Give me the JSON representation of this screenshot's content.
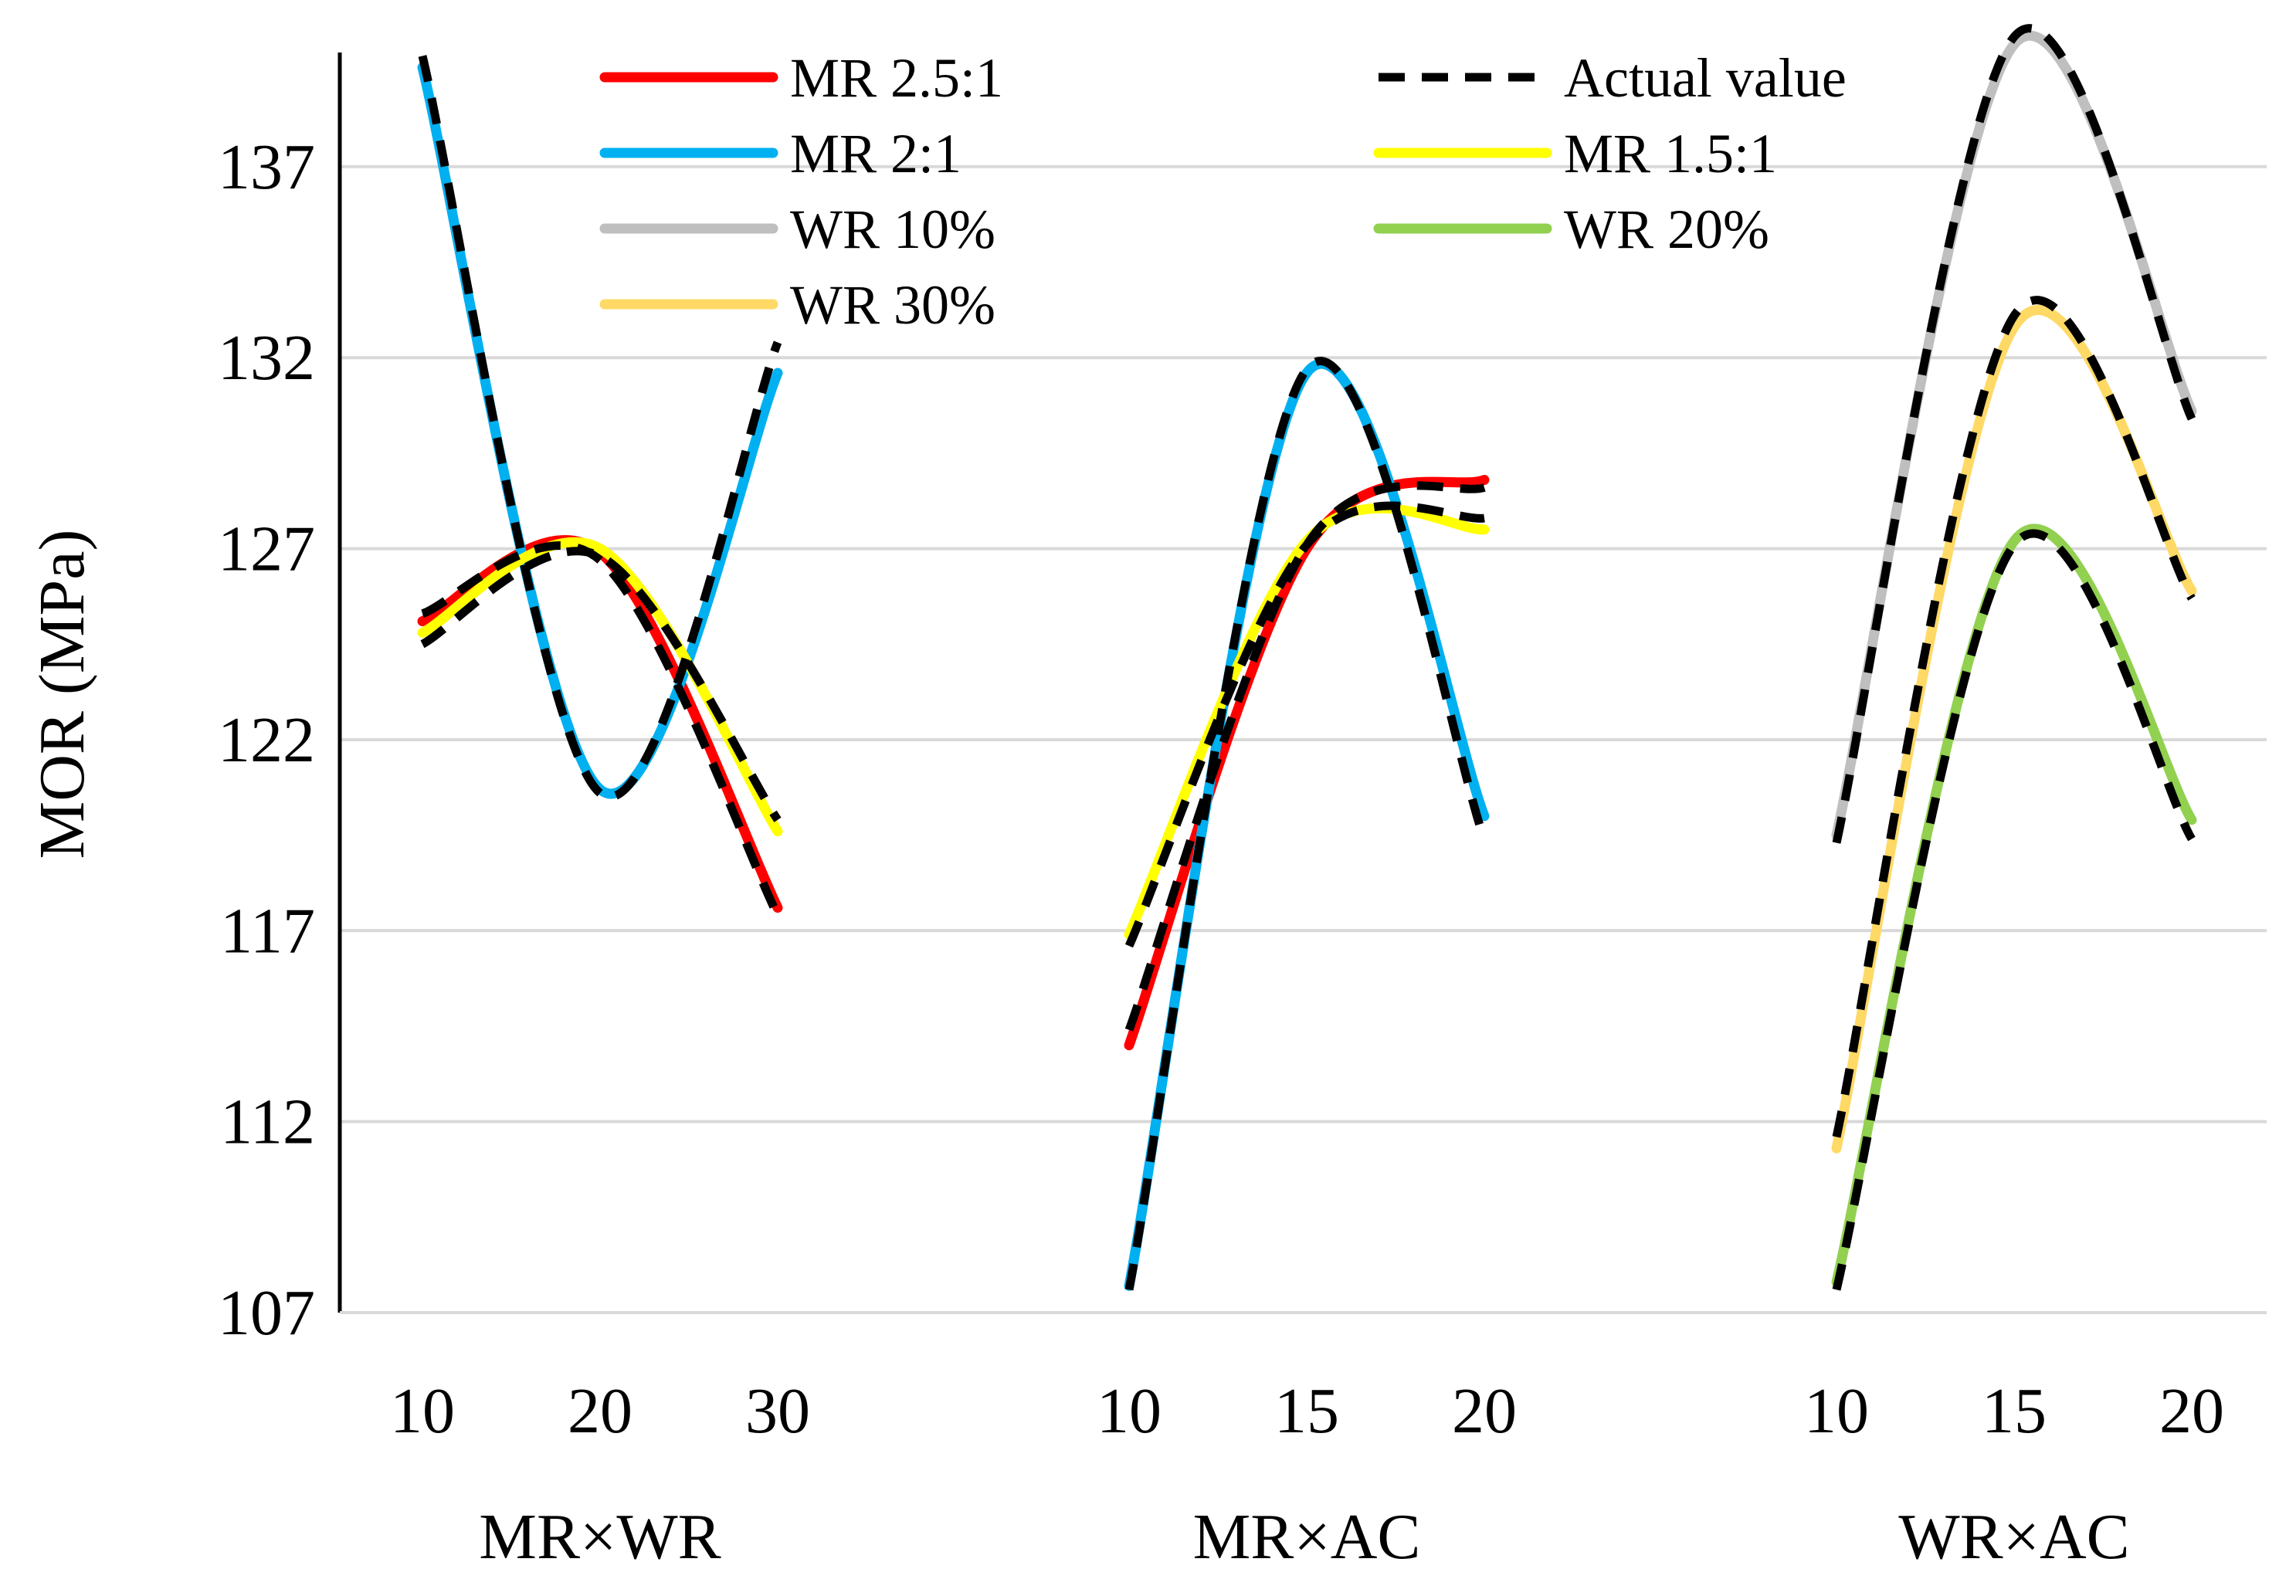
{
  "chart_data": {
    "type": "line",
    "ylabel": "MOR (MPa)",
    "ylim": [
      107,
      141
    ],
    "yticks": [
      107,
      112,
      117,
      122,
      127,
      132,
      137
    ],
    "gridlines": true,
    "legend_position": "top",
    "legend": [
      {
        "key": "mr25",
        "label": "MR 2.5:1",
        "color": "#ff0000",
        "style": "solid"
      },
      {
        "key": "actual",
        "label": "Actual value",
        "color": "#000000",
        "style": "dashed"
      },
      {
        "key": "mr2",
        "label": "MR 2:1",
        "color": "#00b0f0",
        "style": "solid"
      },
      {
        "key": "mr15",
        "label": "MR 1.5:1",
        "color": "#ffff00",
        "style": "solid"
      },
      {
        "key": "wr10",
        "label": "WR 10%",
        "color": "#bfbfbf",
        "style": "solid"
      },
      {
        "key": "wr20",
        "label": "WR 20%",
        "color": "#92d050",
        "style": "solid"
      },
      {
        "key": "wr30",
        "label": "WR 30%",
        "color": "#ffd966",
        "style": "solid"
      }
    ],
    "panels": [
      {
        "name": "MR×WR",
        "x": [
          10,
          20,
          30
        ],
        "series": [
          {
            "key": "mr25",
            "name": "MR 2.5:1",
            "values": [
              125.1,
              126.9,
              117.6
            ]
          },
          {
            "key": "actual",
            "name": "Actual value",
            "values": [
              125.3,
              126.7,
              117.4
            ]
          },
          {
            "key": "mr2",
            "name": "MR 2:1",
            "values": [
              139.6,
              120.7,
              131.6
            ]
          },
          {
            "key": "actual",
            "name": "Actual value",
            "values": [
              139.9,
              120.6,
              132.4
            ]
          },
          {
            "key": "mr15",
            "name": "MR 1.5:1",
            "values": [
              124.8,
              127.0,
              119.6
            ]
          },
          {
            "key": "actual",
            "name": "Actual value",
            "values": [
              124.5,
              126.8,
              119.9
            ]
          }
        ]
      },
      {
        "name": "MR×AC",
        "x": [
          10,
          15,
          20
        ],
        "series": [
          {
            "key": "mr25",
            "name": "MR 2.5:1",
            "values": [
              114.0,
              127.0,
              128.8
            ]
          },
          {
            "key": "actual",
            "name": "Actual value",
            "values": [
              114.4,
              127.1,
              128.6
            ]
          },
          {
            "key": "mr2",
            "name": "MR 2:1",
            "values": [
              107.7,
              131.6,
              120.0
            ]
          },
          {
            "key": "actual",
            "name": "Actual value",
            "values": [
              107.6,
              131.7,
              119.4
            ]
          },
          {
            "key": "mr15",
            "name": "MR 1.5:1",
            "values": [
              116.9,
              127.2,
              127.5
            ]
          },
          {
            "key": "actual",
            "name": "Actual value",
            "values": [
              116.6,
              127.1,
              127.8
            ]
          }
        ]
      },
      {
        "name": "WR×AC",
        "x": [
          10,
          15,
          20
        ],
        "series": [
          {
            "key": "wr10",
            "name": "WR 10%",
            "values": [
              119.5,
              140.2,
              130.6
            ]
          },
          {
            "key": "actual",
            "name": "Actual value",
            "values": [
              119.3,
              140.4,
              130.4
            ]
          },
          {
            "key": "wr30",
            "name": "WR 30%",
            "values": [
              111.3,
              132.8,
              125.9
            ]
          },
          {
            "key": "actual",
            "name": "Actual value",
            "values": [
              111.6,
              133.1,
              125.7
            ]
          },
          {
            "key": "wr20",
            "name": "WR 20%",
            "values": [
              107.8,
              127.2,
              119.9
            ]
          },
          {
            "key": "actual",
            "name": "Actual value",
            "values": [
              107.6,
              127.1,
              119.4
            ]
          }
        ]
      }
    ]
  }
}
